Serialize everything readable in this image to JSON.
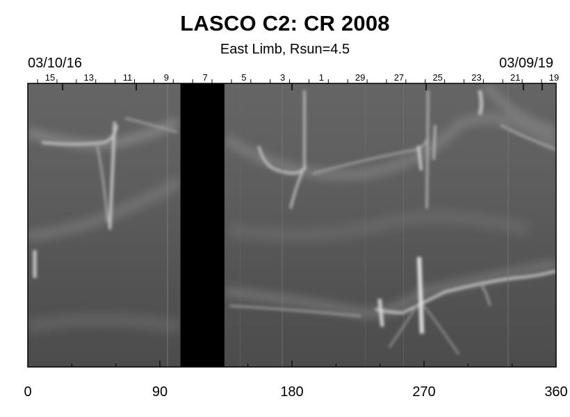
{
  "header": {
    "title": "LASCO C2: CR 2008",
    "subtitle": "East Limb, Rsun=4.5",
    "date_left": "03/10/16",
    "date_right": "03/09/19"
  },
  "axis": {
    "xlim": [
      0,
      360
    ],
    "x_ticks": [
      "0",
      "90",
      "180",
      "270",
      "360"
    ],
    "day_labels": [
      "15",
      "13",
      "11",
      "9",
      "7",
      "5",
      "3",
      "1",
      "29",
      "27",
      "25",
      "23",
      "21",
      "19"
    ]
  },
  "image": {
    "description_colors": {
      "background": "#5a5a5a",
      "data_gap": "#000000",
      "frame": "#000000"
    },
    "data_gap_x_range": [
      104,
      134
    ]
  }
}
